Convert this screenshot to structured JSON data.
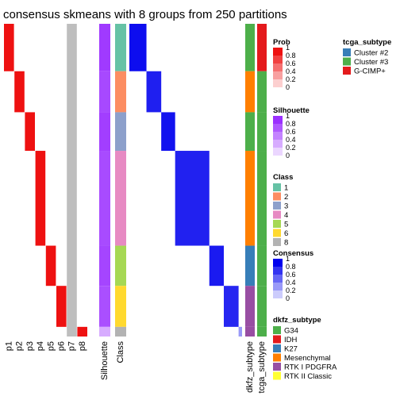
{
  "title": "consensus skmeans with 8 groups from 250 partitions",
  "colors": {
    "prob": "#ee1111",
    "silhouette": "#9b30ff",
    "consensus": "#0000ee",
    "p7_grey": "#bebebe"
  },
  "chart_data": {
    "type": "heatmap",
    "prob_columns": [
      "p1",
      "p2",
      "p3",
      "p4",
      "p5",
      "p6",
      "p7",
      "p8"
    ],
    "annotation_columns": [
      "Silhouette",
      "Class"
    ],
    "subtype_columns": [
      "dkfz_subtype",
      "tcga_subtype"
    ],
    "groups": [
      {
        "class": "1",
        "size": 59,
        "silhouette": 0.95
      },
      {
        "class": "2",
        "size": 51,
        "silhouette": 0.88
      },
      {
        "class": "3",
        "size": 48,
        "silhouette": 0.93
      },
      {
        "class": "4",
        "size": 118,
        "silhouette": 0.87
      },
      {
        "class": "5",
        "size": 50,
        "silhouette": 0.9
      },
      {
        "class": "6",
        "size": 51,
        "silhouette": 0.85
      },
      {
        "class": "7",
        "size": 0,
        "silhouette": 0
      },
      {
        "class": "8",
        "size": 12,
        "silhouette": 0.4
      }
    ],
    "dkfz_segments": [
      {
        "group": "1",
        "subtype": "G34"
      },
      {
        "group": "2",
        "subtype": "Mesenchymal"
      },
      {
        "group": "3",
        "subtype": "G34"
      },
      {
        "group": "4",
        "subtype": "Mesenchymal"
      },
      {
        "group": "5",
        "subtype": "K27"
      },
      {
        "group": "6",
        "subtype": "RTK I PDGFRA"
      },
      {
        "group": "8",
        "subtype": "RTK I PDGFRA"
      }
    ],
    "tcga_segments": [
      {
        "group": "1",
        "subtype": "G-CIMP+"
      },
      {
        "group": "2",
        "subtype": "Cluster #3"
      },
      {
        "group": "3",
        "subtype": "Cluster #3"
      },
      {
        "group": "4",
        "subtype": "Cluster #3"
      },
      {
        "group": "5",
        "subtype": "Cluster #3"
      },
      {
        "group": "6",
        "subtype": "Cluster #3"
      },
      {
        "group": "8",
        "subtype": "Cluster #3"
      }
    ]
  },
  "legends": {
    "prob": {
      "title": "Prob",
      "ticks": [
        "1",
        "0.8",
        "0.6",
        "0.4",
        "0.2",
        "0"
      ]
    },
    "silhouette": {
      "title": "Silhouette",
      "ticks": [
        "1",
        "0.8",
        "0.6",
        "0.4",
        "0.2",
        "0"
      ]
    },
    "class": {
      "title": "Class",
      "items": [
        {
          "label": "1",
          "color": "#66c2a5"
        },
        {
          "label": "2",
          "color": "#fc8d62"
        },
        {
          "label": "3",
          "color": "#8da0cb"
        },
        {
          "label": "4",
          "color": "#e78ac3"
        },
        {
          "label": "5",
          "color": "#a6d854"
        },
        {
          "label": "6",
          "color": "#ffd92f"
        },
        {
          "label": "8",
          "color": "#b3b3b3"
        }
      ]
    },
    "consensus": {
      "title": "Consensus",
      "ticks": [
        "1",
        "0.8",
        "0.6",
        "0.4",
        "0.2",
        "0"
      ]
    },
    "tcga_subtype": {
      "title": "tcga_subtype",
      "items": [
        {
          "label": "Cluster #2",
          "color": "#377eb8"
        },
        {
          "label": "Cluster #3",
          "color": "#4daf4a"
        },
        {
          "label": "G-CIMP+",
          "color": "#e41a1c"
        }
      ]
    },
    "dkfz_subtype": {
      "title": "dkfz_subtype",
      "items": [
        {
          "label": "G34",
          "color": "#4daf4a"
        },
        {
          "label": "IDH",
          "color": "#e41a1c"
        },
        {
          "label": "K27",
          "color": "#377eb8"
        },
        {
          "label": "Mesenchymal",
          "color": "#ff7f00"
        },
        {
          "label": "RTK I PDGFRA",
          "color": "#984ea3"
        },
        {
          "label": "RTK II Classic",
          "color": "#ffff33"
        }
      ]
    }
  }
}
